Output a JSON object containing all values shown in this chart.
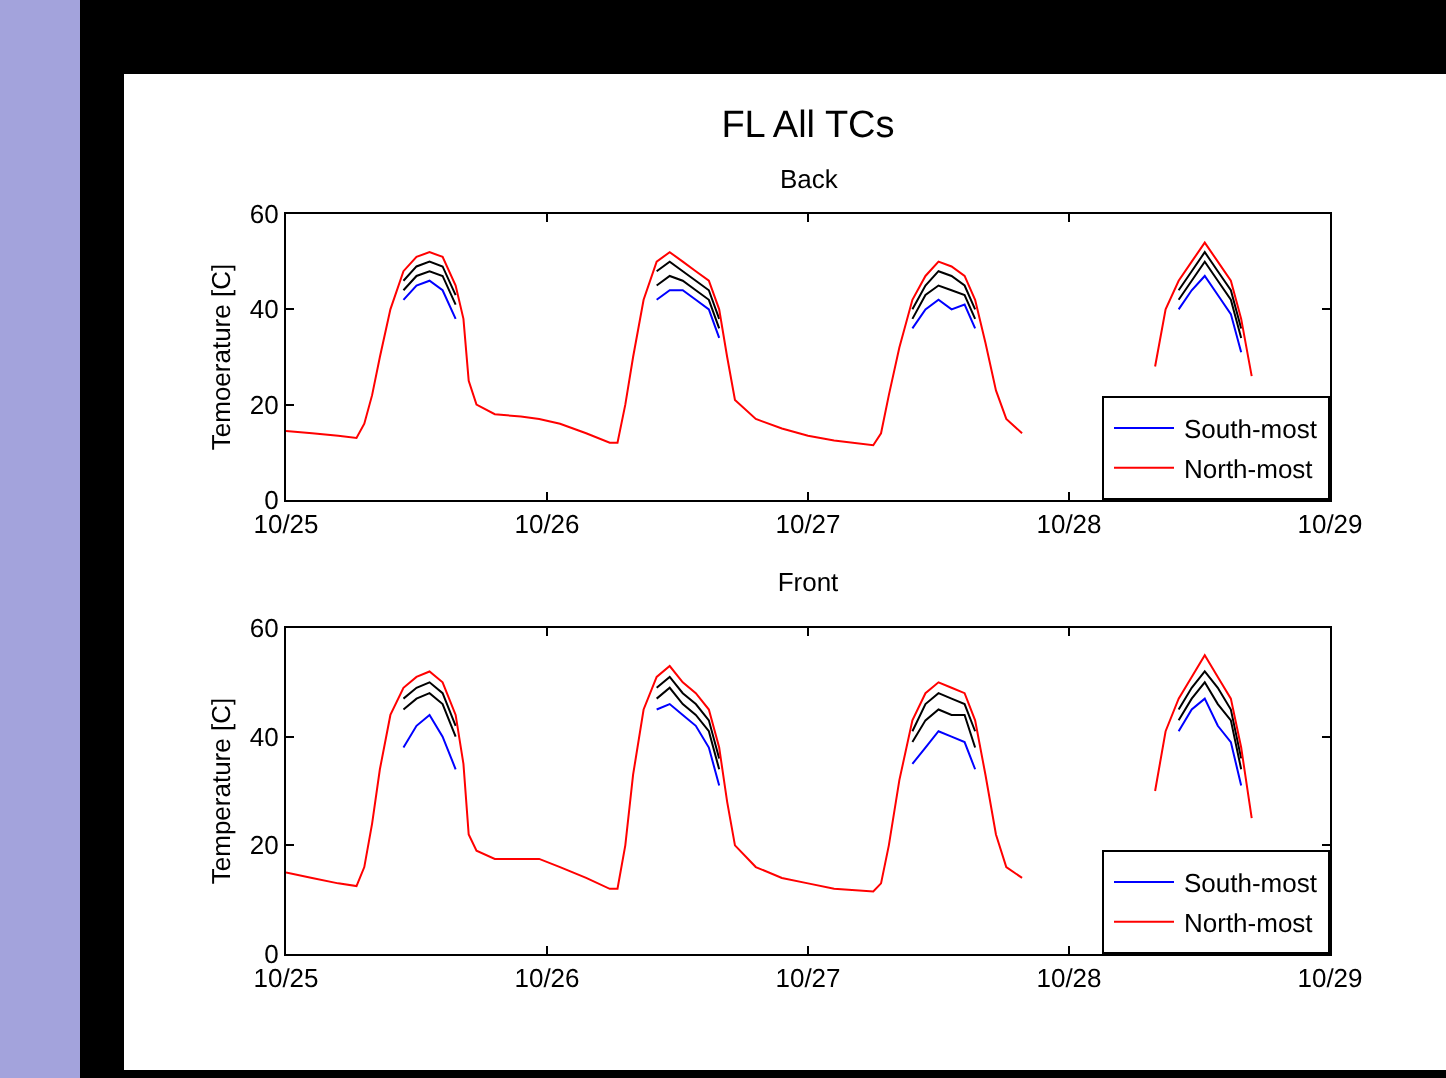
{
  "chart_data": [
    {
      "type": "line",
      "title": "FL All TCs",
      "subtitle": "Back",
      "ylabel": "Temoerature [C]",
      "x": [
        "--10-25T00:00",
        "--10-25T02:24",
        "--10-25T04:48",
        "--10-25T06:29",
        "--10-25T07:12",
        "--10-25T07:55",
        "--10-25T08:38",
        "--10-25T09:36",
        "--10-25T10:48",
        "--10-25T12:00",
        "--10-25T13:12",
        "--10-25T14:24",
        "--10-25T15:36",
        "--10-25T16:19",
        "--10-25T16:48",
        "--10-25T17:31",
        "--10-25T19:12",
        "--10-25T21:36",
        "--10-25T23:17",
        "--10-26T01:12",
        "--10-26T03:36",
        "--10-26T05:46",
        "--10-26T06:29",
        "--10-26T07:12",
        "--10-26T07:55",
        "--10-26T08:53",
        "--10-26T10:05",
        "--10-26T11:17",
        "--10-26T12:29",
        "--10-26T13:41",
        "--10-26T14:53",
        "--10-26T15:50",
        "--10-26T16:34",
        "--10-26T17:17",
        "--10-26T19:12",
        "--10-26T21:36",
        "--10-27T00:00",
        "--10-27T02:24",
        "--10-27T06:00",
        "--10-27T06:43",
        "--10-27T07:26",
        "--10-27T08:24",
        "--10-27T09:36",
        "--10-27T10:48",
        "--10-27T12:00",
        "--10-27T13:12",
        "--10-27T14:24",
        "--10-27T15:22",
        "--10-27T16:19",
        "--10-27T17:17",
        "--10-27T18:14",
        "--10-27T19:41",
        "--10-28T00:00",
        "--10-28T07:12",
        "--10-28T07:55",
        "--10-28T08:53",
        "--10-28T10:05",
        "--10-28T11:17",
        "--10-28T12:29",
        "--10-28T13:41",
        "--10-28T14:53",
        "--10-28T15:50",
        "--10-28T16:48"
      ],
      "series": [
        {
          "color": "#000000",
          "values": [
            null,
            null,
            null,
            null,
            null,
            null,
            null,
            null,
            46,
            49,
            50,
            49,
            43,
            null,
            null,
            null,
            null,
            null,
            null,
            null,
            null,
            null,
            null,
            null,
            null,
            null,
            48,
            50,
            48,
            46,
            44,
            38,
            null,
            null,
            null,
            null,
            null,
            null,
            null,
            null,
            null,
            null,
            40,
            45,
            48,
            47,
            45,
            40,
            null,
            null,
            null,
            null,
            null,
            null,
            null,
            null,
            44,
            48,
            52,
            48,
            44,
            36,
            null
          ]
        },
        {
          "color": "#000000",
          "values": [
            null,
            null,
            null,
            null,
            null,
            null,
            null,
            null,
            44,
            47,
            48,
            47,
            41,
            null,
            null,
            null,
            null,
            null,
            null,
            null,
            null,
            null,
            null,
            null,
            null,
            null,
            45,
            47,
            46,
            44,
            42,
            36,
            null,
            null,
            null,
            null,
            null,
            null,
            null,
            null,
            null,
            null,
            38,
            43,
            45,
            44,
            43,
            38,
            null,
            null,
            null,
            null,
            null,
            null,
            null,
            null,
            42,
            46,
            50,
            46,
            42,
            34,
            null
          ]
        },
        {
          "name": "South-most",
          "color": "#0000ff",
          "values": [
            null,
            null,
            null,
            null,
            null,
            null,
            null,
            null,
            42,
            45,
            46,
            44,
            38,
            null,
            null,
            null,
            null,
            null,
            null,
            null,
            null,
            null,
            null,
            null,
            null,
            null,
            42,
            44,
            44,
            42,
            40,
            34,
            null,
            null,
            null,
            null,
            null,
            null,
            null,
            null,
            null,
            null,
            36,
            40,
            42,
            40,
            41,
            36,
            null,
            null,
            null,
            null,
            null,
            null,
            null,
            null,
            40,
            44,
            47,
            43,
            39,
            31,
            null
          ]
        },
        {
          "name": "North-most",
          "color": "#ff0000",
          "values": [
            14.5,
            14,
            13.5,
            13,
            16,
            22,
            30,
            40,
            48,
            51,
            52,
            51,
            45,
            38,
            25,
            20,
            18,
            17.5,
            17,
            16,
            14,
            12,
            12,
            20,
            30,
            42,
            50,
            52,
            50,
            48,
            46,
            40,
            30,
            21,
            17,
            15,
            13.5,
            12.5,
            11.5,
            14,
            22,
            32,
            42,
            47,
            50,
            49,
            47,
            42,
            33,
            23,
            17,
            14,
            null,
            null,
            28,
            40,
            46,
            50,
            54,
            50,
            46,
            38,
            26
          ]
        }
      ],
      "xlim": [
        "--10-25",
        "--10-29"
      ],
      "xticks": [
        {
          "value": "--10-25",
          "label": "10/25"
        },
        {
          "value": "--10-26",
          "label": "10/26"
        },
        {
          "value": "--10-27",
          "label": "10/27"
        },
        {
          "value": "--10-28",
          "label": "10/28"
        },
        {
          "value": "--10-29",
          "label": "10/29"
        }
      ],
      "ylim": [
        0,
        60
      ],
      "yticks": [
        0,
        20,
        40,
        60
      ],
      "legend": "bottom right"
    },
    {
      "type": "line",
      "title": "Front",
      "ylabel": "Temperature [C]",
      "x": [
        "--10-25T00:00",
        "--10-25T02:24",
        "--10-25T04:48",
        "--10-25T06:29",
        "--10-25T07:12",
        "--10-25T07:55",
        "--10-25T08:38",
        "--10-25T09:36",
        "--10-25T10:48",
        "--10-25T12:00",
        "--10-25T13:12",
        "--10-25T14:24",
        "--10-25T15:36",
        "--10-25T16:19",
        "--10-25T16:48",
        "--10-25T17:31",
        "--10-25T19:12",
        "--10-25T21:36",
        "--10-25T23:17",
        "--10-26T01:12",
        "--10-26T03:36",
        "--10-26T05:46",
        "--10-26T06:29",
        "--10-26T07:12",
        "--10-26T07:55",
        "--10-26T08:53",
        "--10-26T10:05",
        "--10-26T11:17",
        "--10-26T12:29",
        "--10-26T13:41",
        "--10-26T14:53",
        "--10-26T15:50",
        "--10-26T16:34",
        "--10-26T17:17",
        "--10-26T19:12",
        "--10-26T21:36",
        "--10-27T00:00",
        "--10-27T02:24",
        "--10-27T06:00",
        "--10-27T06:43",
        "--10-27T07:26",
        "--10-27T08:24",
        "--10-27T09:36",
        "--10-27T10:48",
        "--10-27T12:00",
        "--10-27T13:12",
        "--10-27T14:24",
        "--10-27T15:22",
        "--10-27T16:19",
        "--10-27T17:17",
        "--10-27T18:14",
        "--10-27T19:41",
        "--10-28T00:00",
        "--10-28T07:12",
        "--10-28T07:55",
        "--10-28T08:53",
        "--10-28T10:05",
        "--10-28T11:17",
        "--10-28T12:29",
        "--10-28T13:41",
        "--10-28T14:53",
        "--10-28T15:50",
        "--10-28T16:48"
      ],
      "series": [
        {
          "color": "#000000",
          "values": [
            null,
            null,
            null,
            null,
            null,
            null,
            null,
            null,
            47,
            49,
            50,
            48,
            42,
            null,
            null,
            null,
            null,
            null,
            null,
            null,
            null,
            null,
            null,
            null,
            null,
            null,
            49,
            51,
            48,
            46,
            43,
            36,
            null,
            null,
            null,
            null,
            null,
            null,
            null,
            null,
            null,
            null,
            41,
            46,
            48,
            47,
            46,
            41,
            null,
            null,
            null,
            null,
            null,
            null,
            null,
            null,
            45,
            49,
            52,
            49,
            45,
            36,
            null
          ]
        },
        {
          "color": "#000000",
          "values": [
            null,
            null,
            null,
            null,
            null,
            null,
            null,
            null,
            45,
            47,
            48,
            46,
            40,
            null,
            null,
            null,
            null,
            null,
            null,
            null,
            null,
            null,
            null,
            null,
            null,
            null,
            47,
            49,
            46,
            44,
            41,
            34,
            null,
            null,
            null,
            null,
            null,
            null,
            null,
            null,
            null,
            null,
            39,
            43,
            45,
            44,
            44,
            38,
            null,
            null,
            null,
            null,
            null,
            null,
            null,
            null,
            43,
            47,
            50,
            46,
            43,
            34,
            null
          ]
        },
        {
          "name": "South-most",
          "color": "#0000ff",
          "values": [
            null,
            null,
            null,
            null,
            null,
            null,
            null,
            null,
            38,
            42,
            44,
            40,
            34,
            null,
            null,
            null,
            null,
            null,
            null,
            null,
            null,
            null,
            null,
            null,
            null,
            null,
            45,
            46,
            44,
            42,
            38,
            31,
            null,
            null,
            null,
            null,
            null,
            null,
            null,
            null,
            null,
            null,
            35,
            38,
            41,
            40,
            39,
            34,
            null,
            null,
            null,
            null,
            null,
            null,
            null,
            null,
            41,
            45,
            47,
            42,
            39,
            31,
            null
          ]
        },
        {
          "name": "North-most",
          "color": "#ff0000",
          "values": [
            15,
            14,
            13,
            12.5,
            16,
            24,
            34,
            44,
            49,
            51,
            52,
            50,
            44,
            35,
            22,
            19,
            17.5,
            17.5,
            17.5,
            16,
            14,
            12,
            12,
            20,
            33,
            45,
            51,
            53,
            50,
            48,
            45,
            38,
            28,
            20,
            16,
            14,
            13,
            12,
            11.5,
            13,
            20,
            32,
            43,
            48,
            50,
            49,
            48,
            43,
            33,
            22,
            16,
            14,
            null,
            null,
            30,
            41,
            47,
            51,
            55,
            51,
            47,
            38,
            25
          ]
        }
      ],
      "xlim": [
        "--10-25",
        "--10-29"
      ],
      "xticks": [
        {
          "value": "--10-25",
          "label": "10/25"
        },
        {
          "value": "--10-26",
          "label": "10/26"
        },
        {
          "value": "--10-27",
          "label": "10/27"
        },
        {
          "value": "--10-28",
          "label": "10/28"
        },
        {
          "value": "--10-29",
          "label": "10/29"
        }
      ],
      "ylim": [
        0,
        60
      ],
      "yticks": [
        0,
        20,
        40,
        60
      ],
      "legend": "bottom right"
    }
  ]
}
